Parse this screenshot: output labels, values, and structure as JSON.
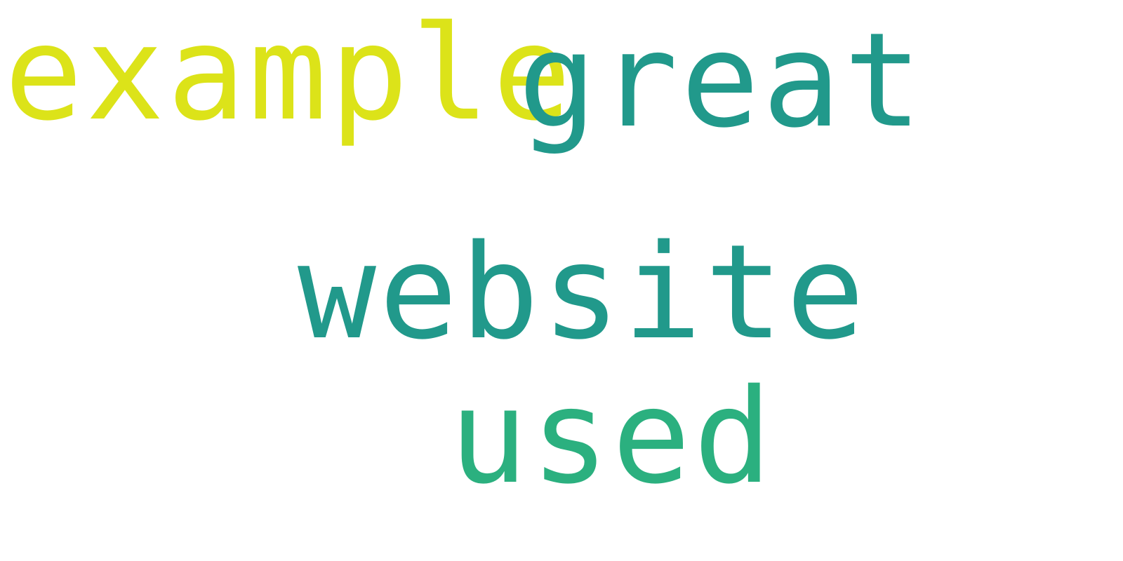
{
  "words": [
    {
      "text": "example",
      "color": "#dce319"
    },
    {
      "text": "great",
      "color": "#21998b"
    },
    {
      "text": "website",
      "color": "#21998b"
    },
    {
      "text": "used",
      "color": "#2bb07f"
    }
  ]
}
